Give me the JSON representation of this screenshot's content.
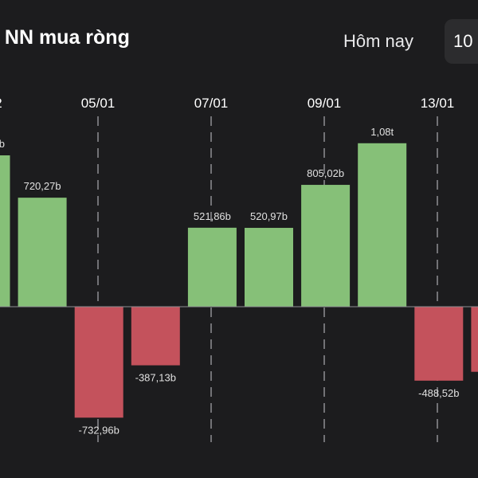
{
  "header": {
    "title": "ị NN mua ròng",
    "range_label": "Hôm nay",
    "range_button": "10"
  },
  "colors": {
    "background": "#1c1c1e",
    "positive": "#86c078",
    "negative": "#c4525c",
    "gridline": "#8e8e93",
    "text": "#ffffff",
    "label": "#e0e0e0"
  },
  "chart_data": {
    "type": "bar",
    "x_ticks": [
      "2",
      "05/01",
      "07/01",
      "09/01",
      "13/01"
    ],
    "bars": [
      {
        "value": 1000,
        "label": "b"
      },
      {
        "value": 720.27,
        "label": "720,27b"
      },
      {
        "value": -732.96,
        "label": "-732,96b"
      },
      {
        "value": -387.13,
        "label": "-387,13b"
      },
      {
        "value": 521.86,
        "label": "521,86b"
      },
      {
        "value": 520.97,
        "label": "520,97b"
      },
      {
        "value": 805.02,
        "label": "805,02b"
      },
      {
        "value": 1080,
        "label": "1,08t"
      },
      {
        "value": -488.52,
        "label": "-488,52b"
      },
      {
        "value": -430,
        "label": "-"
      }
    ],
    "ylim": [
      -800,
      1100
    ],
    "grid": "vertical-dashed"
  }
}
